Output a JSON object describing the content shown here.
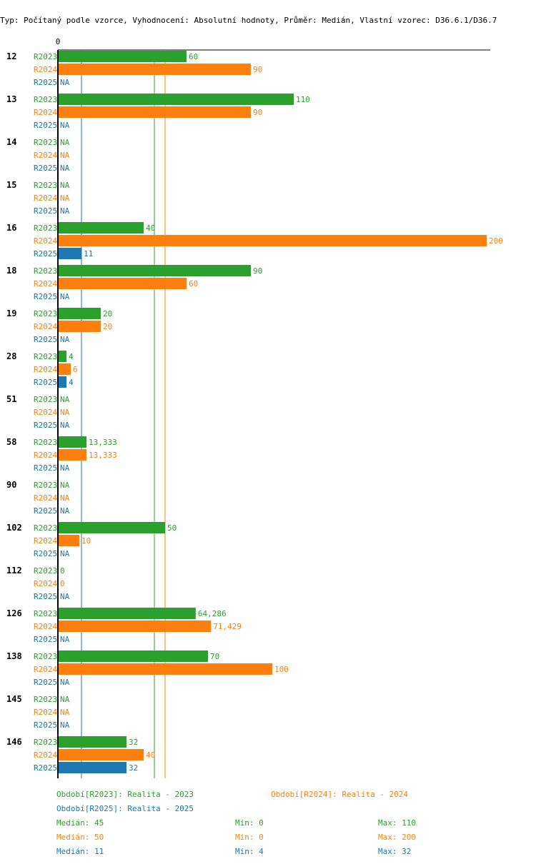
{
  "title": "Typ: Počítaný podle vzorce, Vyhodnocení: Absolutní hodnoty, Průměr: Medián, Vlastní vzorec: D36.6.1/D36.7",
  "colors": {
    "R2023": "#2ca02c",
    "R2024": "#ff7f0e",
    "R2025": "#1f77b4"
  },
  "chart_data": {
    "type": "bar",
    "orientation": "horizontal",
    "xlim": [
      0,
      200
    ],
    "zero_label": "0",
    "na_label": "NA",
    "series_names": [
      "R2023",
      "R2024",
      "R2025"
    ],
    "groups": [
      {
        "label": "12",
        "values": [
          60,
          90,
          null
        ],
        "labels": [
          "60",
          "90",
          "NA"
        ]
      },
      {
        "label": "13",
        "values": [
          110,
          90,
          null
        ],
        "labels": [
          "110",
          "90",
          "NA"
        ]
      },
      {
        "label": "14",
        "values": [
          null,
          null,
          null
        ],
        "labels": [
          "NA",
          "NA",
          "NA"
        ]
      },
      {
        "label": "15",
        "values": [
          null,
          null,
          null
        ],
        "labels": [
          "NA",
          "NA",
          "NA"
        ]
      },
      {
        "label": "16",
        "values": [
          40,
          200,
          11
        ],
        "labels": [
          "40",
          "200",
          "11"
        ]
      },
      {
        "label": "18",
        "values": [
          90,
          60,
          null
        ],
        "labels": [
          "90",
          "60",
          "NA"
        ]
      },
      {
        "label": "19",
        "values": [
          20,
          20,
          null
        ],
        "labels": [
          "20",
          "20",
          "NA"
        ]
      },
      {
        "label": "28",
        "values": [
          4,
          6,
          4
        ],
        "labels": [
          "4",
          "6",
          "4"
        ]
      },
      {
        "label": "51",
        "values": [
          null,
          null,
          null
        ],
        "labels": [
          "NA",
          "NA",
          "NA"
        ]
      },
      {
        "label": "58",
        "values": [
          13.333,
          13.333,
          null
        ],
        "labels": [
          "13,333",
          "13,333",
          "NA"
        ]
      },
      {
        "label": "90",
        "values": [
          null,
          null,
          null
        ],
        "labels": [
          "NA",
          "NA",
          "NA"
        ]
      },
      {
        "label": "102",
        "values": [
          50,
          10,
          null
        ],
        "labels": [
          "50",
          "10",
          "NA"
        ]
      },
      {
        "label": "112",
        "values": [
          0,
          0,
          null
        ],
        "labels": [
          "0",
          "0",
          "NA"
        ]
      },
      {
        "label": "126",
        "values": [
          64.286,
          71.429,
          null
        ],
        "labels": [
          "64,286",
          "71,429",
          "NA"
        ]
      },
      {
        "label": "138",
        "values": [
          70,
          100,
          null
        ],
        "labels": [
          "70",
          "100",
          "NA"
        ]
      },
      {
        "label": "145",
        "values": [
          null,
          null,
          null
        ],
        "labels": [
          "NA",
          "NA",
          "NA"
        ]
      },
      {
        "label": "146",
        "values": [
          32,
          40,
          32
        ],
        "labels": [
          "32",
          "40",
          "32"
        ]
      }
    ],
    "median_lines": {
      "R2023": 45,
      "R2024": 50,
      "R2025": 11
    }
  },
  "legend": {
    "r2023": "Období[R2023]: Realita - 2023",
    "r2024": "Období[R2024]: Realita - 2024",
    "r2025": "Období[R2025]: Realita - 2025"
  },
  "stats": {
    "r2023": {
      "median": "Medián: 45",
      "min": "Min: 0",
      "max": "Max: 110"
    },
    "r2024": {
      "median": "Medián: 50",
      "min": "Min: 0",
      "max": "Max: 200"
    },
    "r2025": {
      "median": "Medián: 11",
      "min": "Min: 4",
      "max": "Max: 32"
    }
  }
}
